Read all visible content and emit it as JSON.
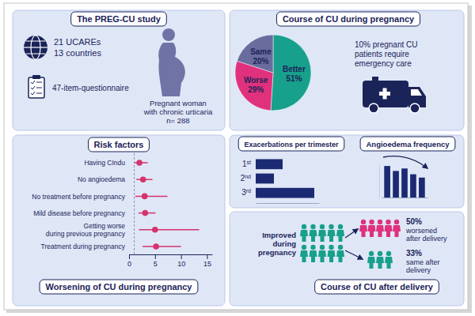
{
  "chart_data": [
    {
      "type": "pie",
      "title": "Course of CU during pregnancy",
      "categories": [
        "Better",
        "Worse",
        "Same"
      ],
      "values": [
        51,
        29,
        20
      ],
      "value_labels": [
        "51%",
        "29%",
        "20%"
      ],
      "colors": [
        "#17a08c",
        "#e0317c",
        "#696c9d"
      ],
      "data_labels": true
    },
    {
      "type": "scatter",
      "title": "Risk factors",
      "subtitle": "Worsening of CU during pregnancy",
      "orientation": "horizontal",
      "categories": [
        "Having CIndu",
        "No angioedema",
        "No treatment before pregnancy",
        "Mild disease before pregnancy",
        "Getting worse\nduring previous pregnancy",
        "Treatment during pregnancy"
      ],
      "values": [
        2.0,
        2.7,
        3.0,
        3.1,
        5.0,
        5.2
      ],
      "ci_low": [
        1.1,
        1.4,
        1.2,
        1.8,
        1.9,
        2.6
      ],
      "ci_high": [
        3.6,
        4.5,
        7.4,
        5.1,
        13.5,
        10.0
      ],
      "reference_line": 1,
      "xlim": [
        0,
        16
      ],
      "xticks": [
        0,
        5,
        10,
        15
      ],
      "color": "#d6336c",
      "marker": "circle"
    },
    {
      "type": "bar",
      "title": "Exacerbations per trimester",
      "orientation": "horizontal",
      "categories": [
        "1st",
        "2nd",
        "3rd"
      ],
      "values": [
        34,
        23,
        74
      ],
      "xlim": [
        0,
        80
      ],
      "color": "#1b2a72",
      "tick_labels": "y"
    },
    {
      "type": "bar",
      "title": "Angioedema frequency",
      "categories": [
        null,
        null,
        null,
        null,
        null
      ],
      "values": [
        38,
        32,
        35,
        28,
        24
      ],
      "ylim": [
        0,
        40
      ],
      "color": "#1b2a72",
      "tick_labels": false
    }
  ],
  "study": {
    "title": "The PREG-CU study",
    "centers": [
      "21 UCAREs",
      "13 countries"
    ],
    "questionnaire": "47-item-questionnaire",
    "population": [
      "Pregnant woman",
      "with chronic urticaria",
      "n= 288"
    ]
  },
  "emergency": [
    "10% pregnant CU",
    "patients require",
    "emergency care"
  ],
  "after_delivery": {
    "title": "Course of CU after delivery",
    "group": [
      "Improved",
      "during",
      "pregnancy"
    ],
    "worsened": {
      "percent": "50%",
      "text": [
        "worsened",
        "after delivery"
      ]
    },
    "same": {
      "percent": "33%",
      "text": [
        "same after",
        "delivery"
      ]
    }
  }
}
